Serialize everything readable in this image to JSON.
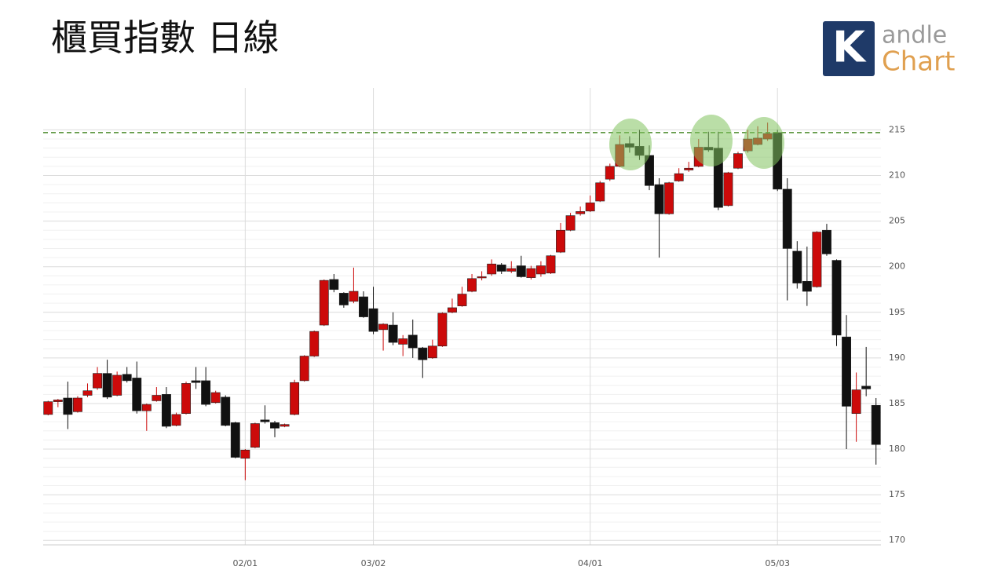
{
  "chart_data": {
    "type": "candlestick",
    "title": "櫃買指數 日線",
    "categories": [
      null,
      null,
      null,
      null,
      null,
      null,
      null,
      null,
      null,
      null,
      null,
      null,
      null,
      null,
      null,
      null,
      null,
      null,
      null,
      null,
      "02/01",
      null,
      null,
      null,
      null,
      null,
      null,
      null,
      null,
      null,
      null,
      null,
      null,
      "03/02",
      null,
      null,
      null,
      null,
      null,
      null,
      null,
      null,
      null,
      null,
      null,
      null,
      null,
      null,
      null,
      null,
      null,
      null,
      null,
      null,
      null,
      "04/01",
      null,
      null,
      null,
      null,
      null,
      null,
      null,
      null,
      null,
      null,
      null,
      null,
      null,
      null,
      null,
      null,
      null,
      null,
      "05/03",
      null,
      null,
      null,
      null,
      null,
      null,
      null,
      null,
      null,
      null
    ],
    "open": [
      183.8,
      185.2,
      185.6,
      184.1,
      185.9,
      186.7,
      188.3,
      185.9,
      188.2,
      187.8,
      184.2,
      185.3,
      186.0,
      182.6,
      183.9,
      187.5,
      187.5,
      185.1,
      185.7,
      182.9,
      179.0,
      180.2,
      183.2,
      182.9,
      182.5,
      183.8,
      187.5,
      190.2,
      193.6,
      198.6,
      197.1,
      196.2,
      196.7,
      195.4,
      193.1,
      193.6,
      191.5,
      192.5,
      191.1,
      190.0,
      191.3,
      195.0,
      195.7,
      197.3,
      198.8,
      199.2,
      200.2,
      199.5,
      200.1,
      198.8,
      199.2,
      199.3,
      201.6,
      204.0,
      205.8,
      206.1,
      207.2,
      209.6,
      211.0,
      213.5,
      213.2,
      212.2,
      209.0,
      205.8,
      209.4,
      210.6,
      211.0,
      213.1,
      213.0,
      206.7,
      210.8,
      212.7,
      213.4,
      214.0,
      214.7,
      208.5,
      201.7,
      198.4,
      197.8,
      204.0,
      200.7,
      192.3,
      183.9,
      186.9,
      184.8
    ],
    "high": [
      185.3,
      185.5,
      187.4,
      185.8,
      187.2,
      189.0,
      189.8,
      188.5,
      189.0,
      189.6,
      185.0,
      186.8,
      186.8,
      184.0,
      187.4,
      189.0,
      189.0,
      186.4,
      185.9,
      183.0,
      180.0,
      182.9,
      184.8,
      183.1,
      182.8,
      187.6,
      190.3,
      193.0,
      198.6,
      199.2,
      197.2,
      199.9,
      197.3,
      197.8,
      193.8,
      195.0,
      192.5,
      194.2,
      191.2,
      192.0,
      195.0,
      196.5,
      197.8,
      199.2,
      199.5,
      200.8,
      200.4,
      200.6,
      201.2,
      200.1,
      200.6,
      201.3,
      204.8,
      205.9,
      206.6,
      207.8,
      209.4,
      211.3,
      214.4,
      214.3,
      215.0,
      213.3,
      209.7,
      209.3,
      210.8,
      211.5,
      214.0,
      214.8,
      214.8,
      210.4,
      212.6,
      215.0,
      215.4,
      215.8,
      215.0,
      209.7,
      202.8,
      202.2,
      203.9,
      204.7,
      200.8,
      194.7,
      188.4,
      191.2,
      185.6
    ],
    "low": [
      183.7,
      184.6,
      182.2,
      184.0,
      185.7,
      186.5,
      185.5,
      185.8,
      187.3,
      183.9,
      182.0,
      185.2,
      182.3,
      182.5,
      183.8,
      186.6,
      184.7,
      185.0,
      182.5,
      179.0,
      176.6,
      180.1,
      182.8,
      181.3,
      182.4,
      183.7,
      187.4,
      190.1,
      193.5,
      197.2,
      195.5,
      196.0,
      194.4,
      192.6,
      190.8,
      191.4,
      190.2,
      190.0,
      187.8,
      189.9,
      191.2,
      194.9,
      195.6,
      197.2,
      198.5,
      199.0,
      199.2,
      199.3,
      198.8,
      198.6,
      198.9,
      199.2,
      201.5,
      203.9,
      205.6,
      206.0,
      207.1,
      209.4,
      210.9,
      212.5,
      211.7,
      208.4,
      201.0,
      205.7,
      209.3,
      210.4,
      210.9,
      212.6,
      206.2,
      206.6,
      210.7,
      212.5,
      213.3,
      213.8,
      208.3,
      196.3,
      197.6,
      195.7,
      197.7,
      201.2,
      191.3,
      180.0,
      180.8,
      185.8,
      178.3
    ],
    "close": [
      185.2,
      185.4,
      183.8,
      185.6,
      186.4,
      188.3,
      185.7,
      188.1,
      187.5,
      184.2,
      184.9,
      185.9,
      182.5,
      183.8,
      187.2,
      187.3,
      184.9,
      186.2,
      182.6,
      179.1,
      179.9,
      182.8,
      183.0,
      182.3,
      182.7,
      187.3,
      190.2,
      192.9,
      198.5,
      197.5,
      195.8,
      197.3,
      194.5,
      192.9,
      193.7,
      191.7,
      192.1,
      191.1,
      189.8,
      191.3,
      194.9,
      195.5,
      197.0,
      198.7,
      198.9,
      200.3,
      199.5,
      199.8,
      198.9,
      199.8,
      200.1,
      201.2,
      204.0,
      205.6,
      206.05,
      207.0,
      209.2,
      211.0,
      213.4,
      213.1,
      212.2,
      208.9,
      205.8,
      209.2,
      210.2,
      210.8,
      213.1,
      212.8,
      206.5,
      210.3,
      212.4,
      214.0,
      214.1,
      214.6,
      208.5,
      202.0,
      198.2,
      197.3,
      203.8,
      201.4,
      192.5,
      184.7,
      186.5,
      186.6,
      180.5
    ],
    "up_color": "#cc0a0a",
    "down_color": "#111111",
    "reference_line": 214.7,
    "reference_color": "#4a8a2a",
    "ylim": [
      169.5,
      219.6
    ],
    "yticks": [
      170,
      175,
      180,
      185,
      190,
      195,
      200,
      205,
      210,
      215
    ],
    "grid": true
  },
  "logo": {
    "letter": "K",
    "line1": "andle",
    "line2": "Chart"
  }
}
